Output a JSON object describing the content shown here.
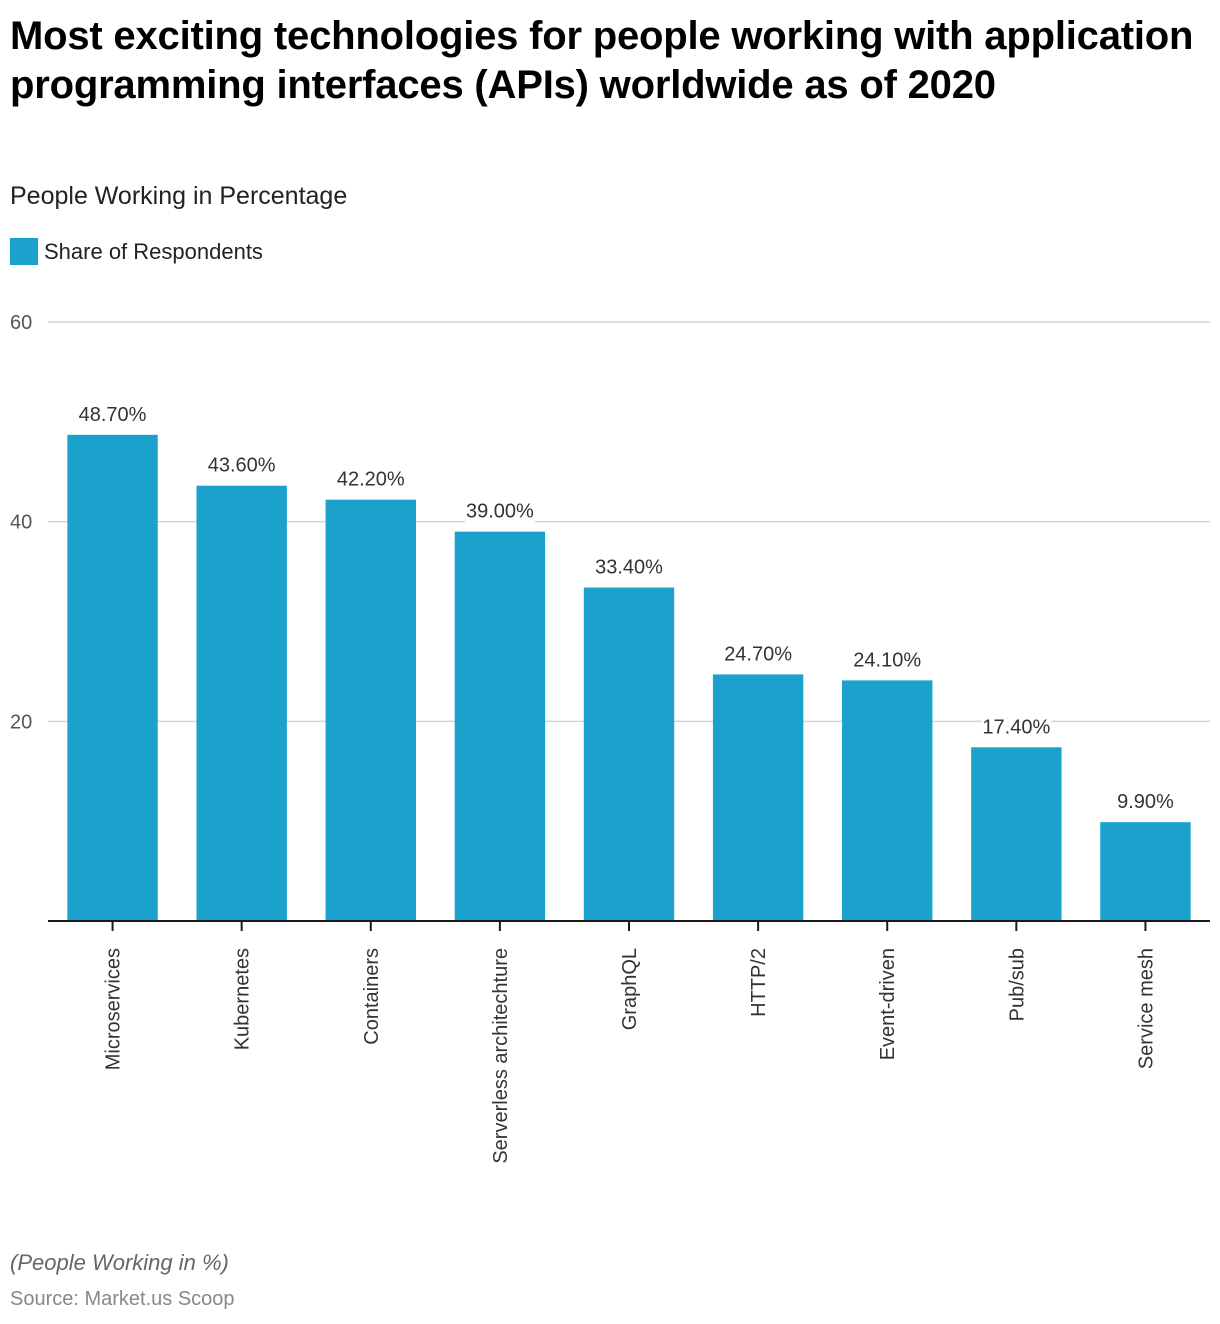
{
  "header": {
    "title": "Most exciting technologies for people working with application programming interfaces (APIs) worldwide as of 2020",
    "subtitle": "People Working in Percentage"
  },
  "legend": {
    "label": "Share of Respondents",
    "color": "#1aa1cc"
  },
  "footer": {
    "note": "(People Working in %)",
    "source": "Source: Market.us Scoop"
  },
  "chart_data": {
    "type": "bar",
    "title": "Most exciting technologies for people working with application programming interfaces (APIs) worldwide as of 2020",
    "subtitle": "People Working in Percentage",
    "xlabel": "",
    "ylabel": "",
    "ylim": [
      0,
      60
    ],
    "yticks": [
      20,
      40,
      60
    ],
    "grid": true,
    "legend": "top-left",
    "categories": [
      "Microservices",
      "Kubernetes",
      "Containers",
      "Serverless architechture",
      "GraphQL",
      "HTTP/2",
      "Event-driven",
      "Pub/sub",
      "Service mesh"
    ],
    "series": [
      {
        "name": "Share of Respondents",
        "color": "#1aa1cc",
        "values": [
          48.7,
          43.6,
          42.2,
          39.0,
          33.4,
          24.7,
          24.1,
          17.4,
          9.9
        ],
        "labels": [
          "48.70%",
          "43.60%",
          "42.20%",
          "39.00%",
          "33.40%",
          "24.70%",
          "24.10%",
          "17.40%",
          "9.90%"
        ]
      }
    ]
  }
}
